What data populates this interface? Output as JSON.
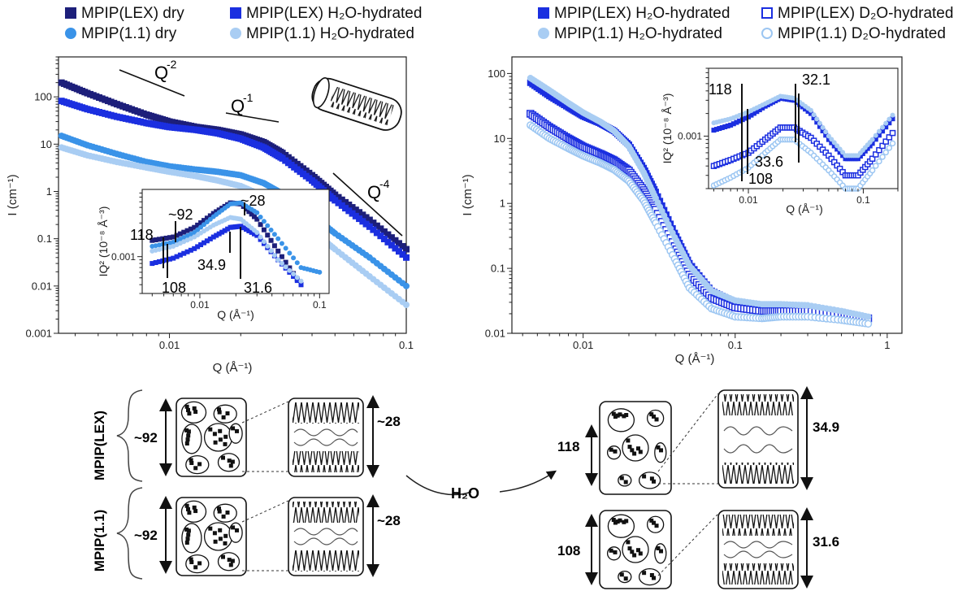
{
  "colors": {
    "lex_dry": "#1d1f7a",
    "lex_h2o": "#1b2fe0",
    "lex_d2o": "#1b2fe0",
    "p11_dry": "#3a93e8",
    "p11_h2o": "#a9cdf3",
    "p11_d2o": "#9cc6f2"
  },
  "left_legend": [
    {
      "label": "MPIP(LEX) dry",
      "marker": "square-filled",
      "color": "#1d1f7a"
    },
    {
      "label": "MPIP(LEX) H₂O-hydrated",
      "marker": "square-filled",
      "color": "#1b2fe0"
    },
    {
      "label": "MPIP(1.1) dry",
      "marker": "circle-filled",
      "color": "#3a93e8"
    },
    {
      "label": "MPIP(1.1) H₂O-hydrated",
      "marker": "circle-filled",
      "color": "#a9cdf3"
    }
  ],
  "right_legend": [
    {
      "label": "MPIP(LEX) H₂O-hydrated",
      "marker": "square-filled",
      "color": "#1b2fe0"
    },
    {
      "label": "MPIP(LEX) D₂O-hydrated",
      "marker": "square-open",
      "color": "#1b2fe0"
    },
    {
      "label": "MPIP(1.1) H₂O-hydrated",
      "marker": "circle-filled",
      "color": "#a9cdf3"
    },
    {
      "label": "MPIP(1.1) D₂O-hydrated",
      "marker": "circle-open",
      "color": "#9cc6f2"
    }
  ],
  "chart_data": [
    {
      "type": "scatter",
      "xscale": "log",
      "yscale": "log",
      "xlabel": "Q (Å⁻¹)",
      "ylabel": "I (cm⁻¹)",
      "xlim": [
        0.0034,
        0.1
      ],
      "ylim": [
        0.001,
        700
      ],
      "xticks": [
        "0.01",
        "0.1"
      ],
      "yticks": [
        "0.001",
        "0.01",
        "0.1",
        "1",
        "10",
        "100"
      ],
      "series": [
        {
          "name": "MPIP(LEX) dry",
          "marker": "square-filled",
          "color": "#1d1f7a",
          "x": [
            0.0035,
            0.0045,
            0.006,
            0.008,
            0.01,
            0.013,
            0.016,
            0.02,
            0.025,
            0.03,
            0.04,
            0.05,
            0.07,
            0.1
          ],
          "y": [
            200,
            120,
            70,
            42,
            30,
            23,
            20,
            16,
            11,
            6.5,
            2.2,
            0.85,
            0.25,
            0.06
          ]
        },
        {
          "name": "MPIP(LEX) H₂O-hydrated",
          "marker": "square-filled",
          "color": "#1b2fe0",
          "x": [
            0.0035,
            0.0045,
            0.006,
            0.008,
            0.01,
            0.013,
            0.016,
            0.02,
            0.025,
            0.03,
            0.04,
            0.05,
            0.07,
            0.1
          ],
          "y": [
            82,
            55,
            38,
            28,
            23,
            20,
            17,
            13,
            8.5,
            5,
            1.7,
            0.65,
            0.18,
            0.04
          ]
        },
        {
          "name": "MPIP(1.1) dry",
          "marker": "circle-filled",
          "color": "#3a93e8",
          "x": [
            0.0035,
            0.0045,
            0.006,
            0.008,
            0.01,
            0.013,
            0.016,
            0.02,
            0.025,
            0.03,
            0.04,
            0.05,
            0.07,
            0.1
          ],
          "y": [
            15,
            9.5,
            6.2,
            4.2,
            3.4,
            2.9,
            2.6,
            2.2,
            1.5,
            0.9,
            0.32,
            0.13,
            0.04,
            0.01
          ]
        },
        {
          "name": "MPIP(1.1) H₂O-hydrated",
          "marker": "circle-filled",
          "color": "#a9cdf3",
          "x": [
            0.0035,
            0.0045,
            0.006,
            0.008,
            0.01,
            0.013,
            0.016,
            0.02,
            0.025,
            0.03,
            0.04,
            0.05,
            0.07,
            0.1
          ],
          "y": [
            8.5,
            5.8,
            4.2,
            3.2,
            2.6,
            2.1,
            1.7,
            1.3,
            0.8,
            0.45,
            0.15,
            0.06,
            0.016,
            0.004
          ]
        }
      ],
      "annotations": [
        "Q",
        "-2",
        "Q",
        "-1",
        "Q",
        "-4"
      ],
      "inset": {
        "xlabel": "Q (Å⁻¹)",
        "ylabel": "IQ² (10⁻⁸ Å⁻³)",
        "xticks": [
          "0.01",
          "0.1"
        ],
        "yticks": [
          "0.001"
        ],
        "xlim": [
          0.0033,
          0.12
        ],
        "ylim": [
          0.0003,
          0.009
        ],
        "labels": [
          "118",
          "~92",
          "~28",
          "34.9",
          "31.6",
          "108"
        ],
        "series": [
          {
            "name": "MPIP(LEX) dry",
            "color": "#1d1f7a",
            "x": [
              0.004,
              0.006,
              0.009,
              0.013,
              0.018,
              0.022,
              0.03,
              0.045,
              0.07
            ],
            "y": [
              0.0017,
              0.0019,
              0.0026,
              0.0041,
              0.0058,
              0.0056,
              0.0034,
              0.0012,
              0.0004
            ]
          },
          {
            "name": "MPIP(LEX) H₂O-hydrated",
            "color": "#1b2fe0",
            "x": [
              0.004,
              0.006,
              0.009,
              0.013,
              0.018,
              0.022,
              0.03,
              0.045,
              0.07
            ],
            "y": [
              0.0008,
              0.00095,
              0.0013,
              0.0019,
              0.0026,
              0.0027,
              0.002,
              0.0009,
              0.0004
            ]
          },
          {
            "name": "MPIP(1.1) dry",
            "color": "#3a93e8",
            "x": [
              0.004,
              0.006,
              0.009,
              0.013,
              0.018,
              0.022,
              0.03,
              0.045,
              0.07,
              0.1
            ],
            "y": [
              0.0014,
              0.0016,
              0.0022,
              0.0037,
              0.0056,
              0.0058,
              0.0042,
              0.0018,
              0.0007,
              0.0006
            ]
          },
          {
            "name": "MPIP(1.1) H₂O-hydrated",
            "color": "#a9cdf3",
            "x": [
              0.004,
              0.006,
              0.009,
              0.013,
              0.018,
              0.022,
              0.03,
              0.045,
              0.07
            ],
            "y": [
              0.0012,
              0.0014,
              0.0019,
              0.0028,
              0.0036,
              0.0034,
              0.0022,
              0.0009,
              0.00045
            ]
          }
        ]
      }
    },
    {
      "type": "scatter",
      "xscale": "log",
      "yscale": "log",
      "xlabel": "Q (Å⁻¹)",
      "ylabel": "I (cm⁻¹)",
      "xlim": [
        0.0034,
        1.25
      ],
      "ylim": [
        0.01,
        180
      ],
      "xticks": [
        "0.01",
        "0.1",
        "1"
      ],
      "yticks": [
        "0.01",
        "0.1",
        "1",
        "10",
        "100"
      ],
      "series": [
        {
          "name": "MPIP(LEX) H₂O-hydrated",
          "marker": "square-filled",
          "color": "#1b2fe0",
          "x": [
            0.0045,
            0.006,
            0.008,
            0.01,
            0.013,
            0.016,
            0.02,
            0.025,
            0.03,
            0.04,
            0.05,
            0.07,
            0.1,
            0.15,
            0.2,
            0.3,
            0.5,
            0.75
          ],
          "y": [
            72,
            45,
            30,
            22,
            17,
            13,
            8,
            3.5,
            1.5,
            0.35,
            0.12,
            0.045,
            0.03,
            0.026,
            0.026,
            0.025,
            0.02,
            0.017
          ]
        },
        {
          "name": "MPIP(LEX) D₂O-hydrated",
          "marker": "square-open",
          "color": "#1b2fe0",
          "x": [
            0.0045,
            0.006,
            0.008,
            0.01,
            0.013,
            0.016,
            0.02,
            0.025,
            0.03,
            0.04,
            0.05,
            0.07,
            0.1,
            0.15,
            0.2,
            0.3,
            0.5,
            0.75
          ],
          "y": [
            24,
            15,
            10,
            7.5,
            5.8,
            4.6,
            3.2,
            1.6,
            0.8,
            0.22,
            0.08,
            0.035,
            0.025,
            0.022,
            0.022,
            0.022,
            0.02,
            0.017
          ]
        },
        {
          "name": "MPIP(1.1) H₂O-hydrated",
          "marker": "circle-filled",
          "color": "#a9cdf3",
          "x": [
            0.0045,
            0.006,
            0.008,
            0.01,
            0.013,
            0.016,
            0.02,
            0.025,
            0.03,
            0.04,
            0.05,
            0.07,
            0.1,
            0.15,
            0.2,
            0.3,
            0.5,
            0.75
          ],
          "y": [
            85,
            55,
            35,
            25,
            18,
            13,
            7.5,
            3,
            1.2,
            0.3,
            0.11,
            0.045,
            0.032,
            0.028,
            0.028,
            0.027,
            0.022,
            0.018
          ]
        },
        {
          "name": "MPIP(1.1) D₂O-hydrated",
          "marker": "circle-open",
          "color": "#9cc6f2",
          "x": [
            0.0045,
            0.006,
            0.008,
            0.01,
            0.013,
            0.016,
            0.02,
            0.025,
            0.03,
            0.04,
            0.05,
            0.07,
            0.1,
            0.15,
            0.2,
            0.3,
            0.5,
            0.75
          ],
          "y": [
            16,
            10,
            7,
            5.4,
            4.2,
            3.3,
            2.2,
            1.1,
            0.5,
            0.14,
            0.05,
            0.024,
            0.018,
            0.017,
            0.018,
            0.018,
            0.016,
            0.014
          ]
        }
      ],
      "inset": {
        "xlabel": "Q (Å⁻¹)",
        "ylabel": "IQ² (10⁻⁸ Å⁻³)",
        "xticks": [
          "0.01",
          "0.1"
        ],
        "yticks": [
          "0.001"
        ],
        "xlim": [
          0.0045,
          0.2
        ],
        "ylim": [
          0.0002,
          0.008
        ],
        "labels": [
          "118",
          "32.1",
          "33.6",
          "108"
        ],
        "series": [
          {
            "name": "MPIP(LEX) H₂O-hydrated",
            "color": "#1b2fe0",
            "x": [
              0.005,
              0.007,
              0.01,
              0.014,
              0.019,
              0.025,
              0.035,
              0.05,
              0.07,
              0.09,
              0.12,
              0.18
            ],
            "y": [
              0.0012,
              0.0014,
              0.0018,
              0.0025,
              0.0032,
              0.003,
              0.002,
              0.0009,
              0.0005,
              0.0005,
              0.0008,
              0.0017
            ]
          },
          {
            "name": "MPIP(LEX) D₂O-hydrated",
            "color": "#1b2fe0",
            "x": [
              0.005,
              0.007,
              0.01,
              0.014,
              0.019,
              0.025,
              0.035,
              0.05,
              0.07,
              0.09,
              0.12,
              0.18
            ],
            "y": [
              0.0004,
              0.00048,
              0.0006,
              0.0009,
              0.0013,
              0.0013,
              0.00095,
              0.00055,
              0.0003,
              0.0003,
              0.0005,
              0.0011
            ]
          },
          {
            "name": "MPIP(1.1) H₂O-hydrated",
            "color": "#a9cdf3",
            "x": [
              0.005,
              0.007,
              0.01,
              0.014,
              0.019,
              0.025,
              0.035,
              0.05,
              0.07,
              0.09,
              0.12,
              0.18
            ],
            "y": [
              0.0015,
              0.0017,
              0.0021,
              0.0027,
              0.0034,
              0.0032,
              0.0022,
              0.001,
              0.00055,
              0.00055,
              0.0009,
              0.0019
            ]
          },
          {
            "name": "MPIP(1.1) D₂O-hydrated",
            "color": "#9cc6f2",
            "x": [
              0.005,
              0.007,
              0.01,
              0.014,
              0.019,
              0.025,
              0.035,
              0.05,
              0.07,
              0.09,
              0.12,
              0.18
            ],
            "y": [
              0.00022,
              0.00028,
              0.00038,
              0.0006,
              0.0009,
              0.0009,
              0.0006,
              0.00035,
              0.0002,
              0.0002,
              0.00035,
              0.0008
            ]
          }
        ]
      }
    }
  ],
  "schematic": {
    "sample_labels": [
      "MPIP(LEX)",
      "MPIP(1.1)"
    ],
    "dry_values": [
      "~92",
      "~28",
      "~92",
      "~28"
    ],
    "water_label": "H₂O",
    "hydrated_values": [
      "118",
      "34.9",
      "108",
      "31.6"
    ]
  }
}
